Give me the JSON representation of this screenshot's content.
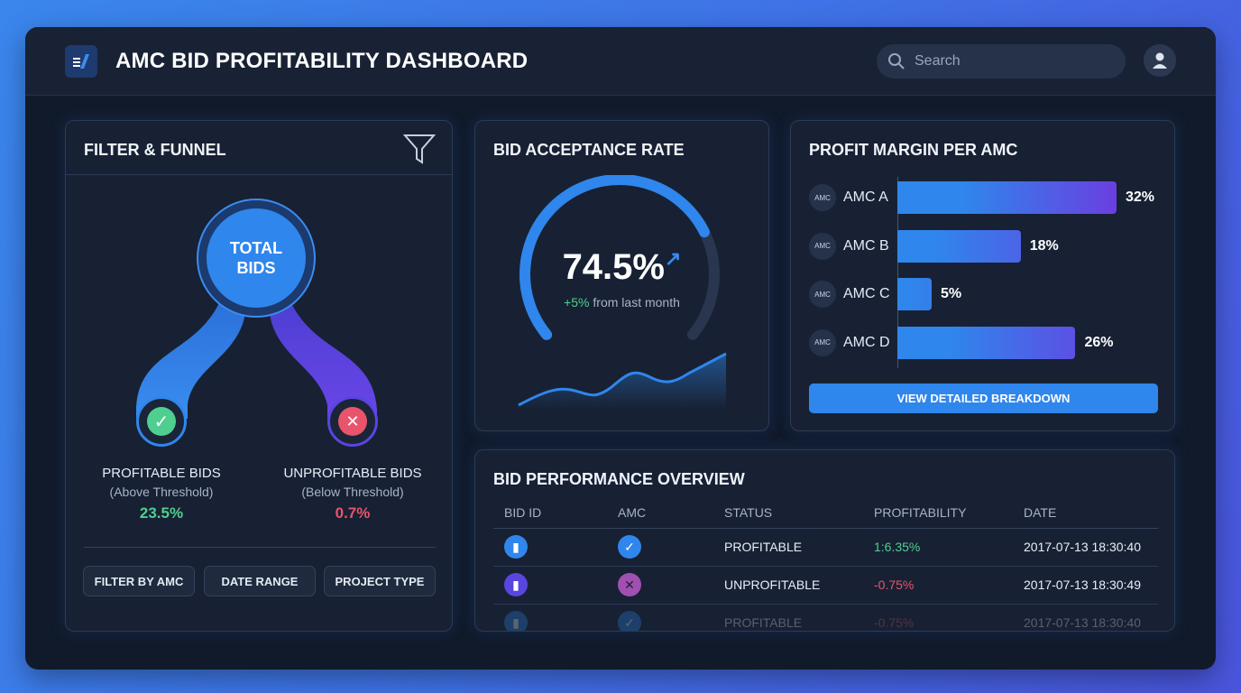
{
  "header": {
    "title": "AMC BID PROFITABILITY DASHBOARD",
    "search_placeholder": "Search"
  },
  "filter": {
    "title": "FILTER & FUNNEL",
    "total_label_1": "TOTAL",
    "total_label_2": "BIDS",
    "profitable": {
      "label": "PROFITABLE BIDS",
      "sub": "(Above Threshold)",
      "value": "23.5%"
    },
    "unprofitable": {
      "label": "UNPROFITABLE BIDS",
      "sub": "(Below Threshold)",
      "value": "0.7%"
    },
    "buttons": [
      "FILTER BY AMC",
      "DATE RANGE",
      "PROJECT TYPE"
    ]
  },
  "acceptance": {
    "title": "BID ACCEPTANCE RATE",
    "value": "74.5%",
    "rate": 0.745,
    "change": "+5%",
    "change_suffix": " from last month"
  },
  "profit": {
    "title": "PROFIT MARGIN PER AMC",
    "icon_text": "AMC",
    "items": [
      {
        "name": "AMC A",
        "value": "32%",
        "pct": 32
      },
      {
        "name": "AMC B",
        "value": "18%",
        "pct": 18
      },
      {
        "name": "AMC C",
        "value": "5%",
        "pct": 5
      },
      {
        "name": "AMC D",
        "value": "26%",
        "pct": 26
      }
    ],
    "button": "VIEW DETAILED BREAKDOWN"
  },
  "table": {
    "title": "BID PERFORMANCE OVERVIEW",
    "columns": [
      "BID ID",
      "AMC",
      "STATUS",
      "PROFITABILITY",
      "DATE"
    ],
    "rows": [
      {
        "status": "PROFITABLE",
        "profitability": "1:6.35%",
        "date": "2017-07-13 18:30:40"
      },
      {
        "status": "UNPROFITABLE",
        "profitability": "-0.75%",
        "date": "2017-07-13 18:30:49"
      },
      {
        "status": "PROFITABLE",
        "profitability": "-0.75%",
        "date": "2017-07-13 18:30:40"
      }
    ]
  },
  "colors": {
    "accent": "#2f86ec",
    "purple": "#6a3fe0",
    "green": "#4fcf8f",
    "red": "#e8546c"
  }
}
